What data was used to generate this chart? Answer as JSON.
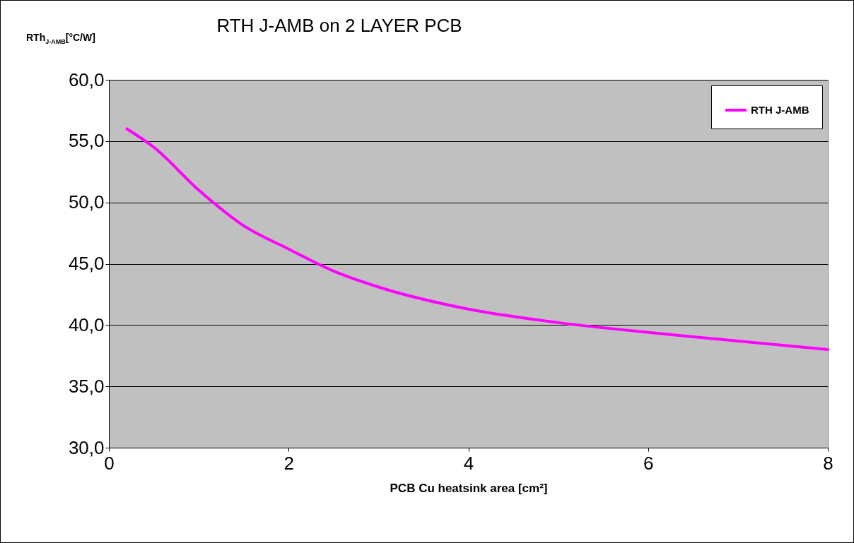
{
  "chart_data": {
    "type": "line",
    "title": "RTH J-AMB on 2 LAYER PCB",
    "ylabel": "RTh$_{J-AMB}$[°C/W]",
    "xlabel": "PCB Cu heatsink area [cm²]",
    "series": [
      {
        "name": "RTH J-AMB",
        "color": "#ff00ff",
        "x": [
          0.2,
          0.5,
          1,
          1.5,
          2,
          2.5,
          3,
          4,
          5,
          6,
          7,
          8
        ],
        "values": [
          56.0,
          54.5,
          51.0,
          48.1,
          46.2,
          44.4,
          43.1,
          41.3,
          40.2,
          39.4,
          38.7,
          38.0
        ]
      }
    ],
    "xlim": [
      0,
      8
    ],
    "xticks": [
      0,
      2,
      4,
      6,
      8
    ],
    "ylim": [
      30,
      60
    ],
    "yticks": [
      {
        "value": 30,
        "label": "30,0"
      },
      {
        "value": 35,
        "label": "35,0"
      },
      {
        "value": 40,
        "label": "40,0"
      },
      {
        "value": 45,
        "label": "45,0"
      },
      {
        "value": 50,
        "label": "50,0"
      },
      {
        "value": 55,
        "label": "55,0"
      },
      {
        "value": 60,
        "label": "60,0"
      }
    ],
    "grid": "y",
    "legend": "top right",
    "marker": "none",
    "line_style": "solid"
  }
}
